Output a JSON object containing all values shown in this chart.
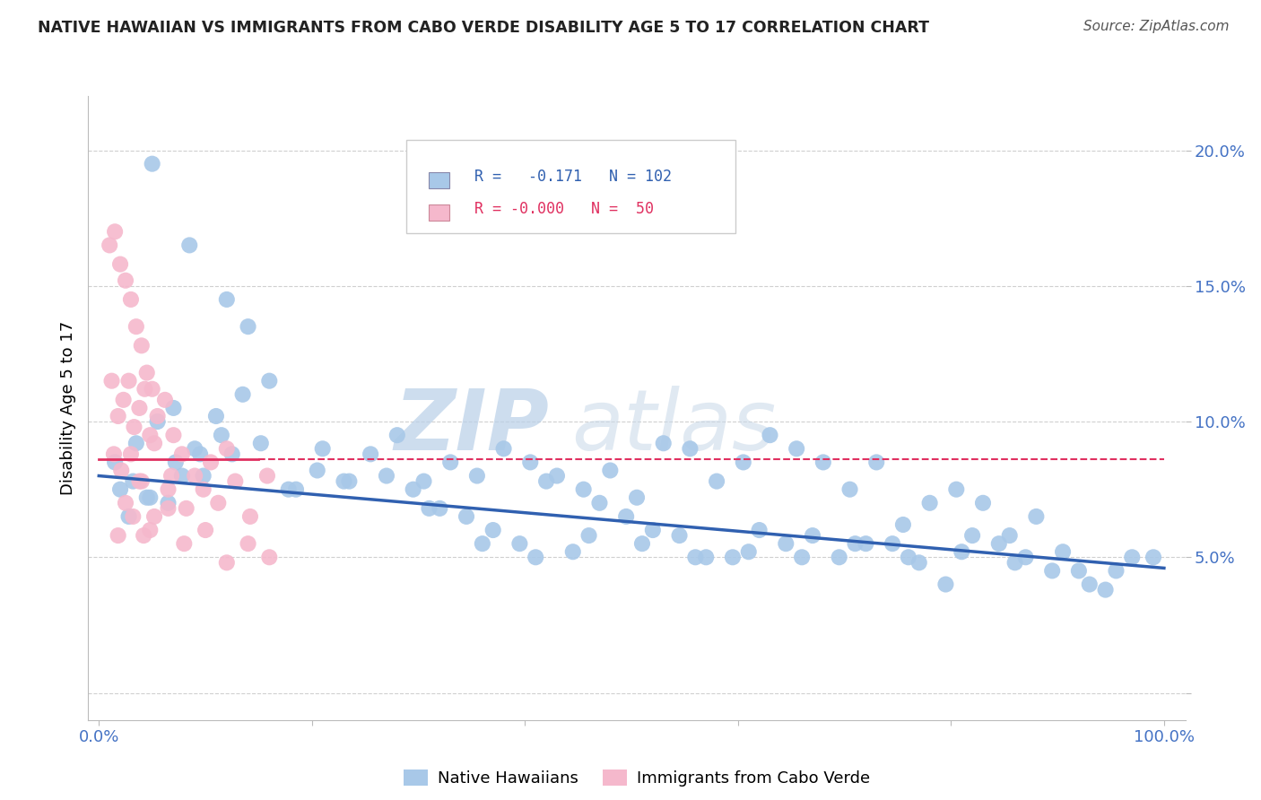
{
  "title": "NATIVE HAWAIIAN VS IMMIGRANTS FROM CABO VERDE DISABILITY AGE 5 TO 17 CORRELATION CHART",
  "source": "Source: ZipAtlas.com",
  "ylabel": "Disability Age 5 to 17",
  "xlim": [
    -1.0,
    102.0
  ],
  "ylim": [
    -1.0,
    22.0
  ],
  "r_blue": -0.171,
  "n_blue": 102,
  "r_pink": -0.0,
  "n_pink": 50,
  "blue_color": "#a8c8e8",
  "pink_color": "#f5b8cc",
  "blue_line_color": "#3060b0",
  "pink_line_color": "#e03060",
  "watermark_zip": "ZIP",
  "watermark_atlas": "atlas",
  "watermark_color": "#c5d8ee",
  "grid_color": "#d0d0d0",
  "tick_color": "#4472c4",
  "title_color": "#222222",
  "blue_line_start_y": 8.0,
  "blue_line_end_y": 4.6,
  "pink_line_y": 8.6,
  "blue_scatter_x": [
    5.0,
    8.5,
    12.0,
    1.5,
    3.2,
    4.8,
    2.0,
    6.5,
    7.8,
    9.5,
    11.5,
    14.0,
    3.5,
    5.5,
    7.0,
    9.0,
    11.0,
    13.5,
    16.0,
    18.5,
    21.0,
    23.5,
    2.8,
    4.5,
    7.2,
    9.8,
    12.5,
    15.2,
    17.8,
    20.5,
    23.0,
    25.5,
    28.0,
    30.5,
    33.0,
    35.5,
    38.0,
    40.5,
    43.0,
    45.5,
    48.0,
    50.5,
    53.0,
    55.5,
    58.0,
    60.5,
    63.0,
    65.5,
    68.0,
    70.5,
    73.0,
    75.5,
    78.0,
    80.5,
    83.0,
    85.5,
    88.0,
    90.5,
    93.0,
    95.5,
    27.0,
    32.0,
    37.0,
    42.0,
    47.0,
    52.0,
    57.0,
    62.0,
    67.0,
    72.0,
    77.0,
    82.0,
    87.0,
    92.0,
    97.0,
    29.5,
    34.5,
    39.5,
    44.5,
    49.5,
    54.5,
    59.5,
    64.5,
    69.5,
    74.5,
    79.5,
    84.5,
    89.5,
    94.5,
    99.0,
    31.0,
    36.0,
    41.0,
    46.0,
    51.0,
    56.0,
    61.0,
    66.0,
    71.0,
    76.0,
    81.0,
    86.0
  ],
  "blue_scatter_y": [
    19.5,
    16.5,
    14.5,
    8.5,
    7.8,
    7.2,
    7.5,
    7.0,
    8.0,
    8.8,
    9.5,
    13.5,
    9.2,
    10.0,
    10.5,
    9.0,
    10.2,
    11.0,
    11.5,
    7.5,
    9.0,
    7.8,
    6.5,
    7.2,
    8.5,
    8.0,
    8.8,
    9.2,
    7.5,
    8.2,
    7.8,
    8.8,
    9.5,
    7.8,
    8.5,
    8.0,
    9.0,
    8.5,
    8.0,
    7.5,
    8.2,
    7.2,
    9.2,
    9.0,
    7.8,
    8.5,
    9.5,
    9.0,
    8.5,
    7.5,
    8.5,
    6.2,
    7.0,
    7.5,
    7.0,
    5.8,
    6.5,
    5.2,
    4.0,
    4.5,
    8.0,
    6.8,
    6.0,
    7.8,
    7.0,
    6.0,
    5.0,
    6.0,
    5.8,
    5.5,
    4.8,
    5.8,
    5.0,
    4.5,
    5.0,
    7.5,
    6.5,
    5.5,
    5.2,
    6.5,
    5.8,
    5.0,
    5.5,
    5.0,
    5.5,
    4.0,
    5.5,
    4.5,
    3.8,
    5.0,
    6.8,
    5.5,
    5.0,
    5.8,
    5.5,
    5.0,
    5.2,
    5.0,
    5.5,
    5.0,
    5.2,
    4.8
  ],
  "pink_scatter_x": [
    1.0,
    1.5,
    2.0,
    2.5,
    3.0,
    3.5,
    4.0,
    4.5,
    5.0,
    1.2,
    1.8,
    2.3,
    2.8,
    3.3,
    3.8,
    4.3,
    4.8,
    5.5,
    6.2,
    7.0,
    1.4,
    2.1,
    3.0,
    4.0,
    5.2,
    6.5,
    7.8,
    9.0,
    10.5,
    12.0,
    2.5,
    3.8,
    5.2,
    6.8,
    8.2,
    9.8,
    11.2,
    12.8,
    14.2,
    15.8,
    1.8,
    3.2,
    4.8,
    6.5,
    8.0,
    10.0,
    12.0,
    14.0,
    16.0,
    4.2
  ],
  "pink_scatter_y": [
    16.5,
    17.0,
    15.8,
    15.2,
    14.5,
    13.5,
    12.8,
    11.8,
    11.2,
    11.5,
    10.2,
    10.8,
    11.5,
    9.8,
    10.5,
    11.2,
    9.5,
    10.2,
    10.8,
    9.5,
    8.8,
    8.2,
    8.8,
    7.8,
    9.2,
    7.5,
    8.8,
    8.0,
    8.5,
    9.0,
    7.0,
    7.8,
    6.5,
    8.0,
    6.8,
    7.5,
    7.0,
    7.8,
    6.5,
    8.0,
    5.8,
    6.5,
    6.0,
    6.8,
    5.5,
    6.0,
    4.8,
    5.5,
    5.0,
    5.8
  ]
}
